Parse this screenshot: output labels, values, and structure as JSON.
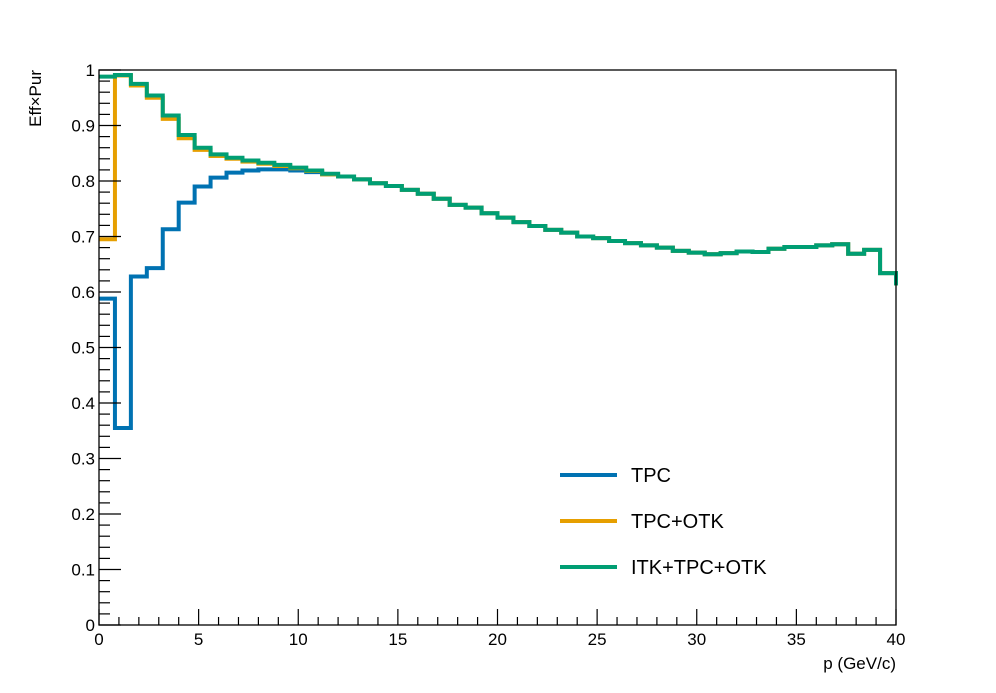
{
  "chart_data": {
    "type": "line",
    "step": true,
    "xlabel": "p (GeV/c)",
    "ylabel": "Eff×Pur",
    "xlim": [
      0,
      40
    ],
    "ylim": [
      0,
      1
    ],
    "x_ticks": [
      0,
      5,
      10,
      15,
      20,
      25,
      30,
      35,
      40
    ],
    "y_ticks": [
      0,
      0.1,
      0.2,
      0.3,
      0.4,
      0.5,
      0.6,
      0.7,
      0.8,
      0.9,
      1
    ],
    "x_tick_labels": [
      "0",
      "5",
      "10",
      "15",
      "20",
      "25",
      "30",
      "35",
      "40"
    ],
    "y_tick_labels": [
      "0",
      "0.1",
      "0.2",
      "0.3",
      "0.4",
      "0.5",
      "0.6",
      "0.7",
      "0.8",
      "0.9",
      "1"
    ],
    "grid": false,
    "legend_position": "bottom-right",
    "bin_edges": [
      0,
      0.8,
      1.6,
      2.4,
      3.2,
      4,
      4.8,
      5.6,
      6.4,
      7.2,
      8,
      8.8,
      9.6,
      10.4,
      11.2,
      12,
      12.8,
      13.6,
      14.4,
      15.2,
      16,
      16.8,
      17.6,
      18.4,
      19.2,
      20,
      20.8,
      21.6,
      22.4,
      23.2,
      24,
      24.8,
      25.6,
      26.4,
      27.2,
      28,
      28.8,
      29.6,
      30.4,
      31.2,
      32,
      32.8,
      33.6,
      34.4,
      35.2,
      36,
      36.8,
      37.6,
      38.4,
      39.2,
      40
    ],
    "series": [
      {
        "name": "TPC",
        "color": "#0072b2",
        "values": [
          0.588,
          0.355,
          0.628,
          0.643,
          0.713,
          0.761,
          0.79,
          0.806,
          0.815,
          0.819,
          0.821,
          0.821,
          0.819,
          0.816,
          0.812,
          0.808,
          0.803,
          0.796,
          0.791,
          0.784,
          0.777,
          0.768,
          0.757,
          0.752,
          0.742,
          0.734,
          0.726,
          0.719,
          0.712,
          0.707,
          0.7,
          0.697,
          0.692,
          0.688,
          0.684,
          0.68,
          0.674,
          0.671,
          0.668,
          0.67,
          0.673,
          0.672,
          0.678,
          0.681,
          0.681,
          0.684,
          0.686,
          0.669,
          0.676,
          0.634,
          0.612
        ]
      },
      {
        "name": "TPC+OTK",
        "color": "#e69f00",
        "values": [
          0.695,
          0.99,
          0.972,
          0.95,
          0.912,
          0.877,
          0.856,
          0.845,
          0.84,
          0.835,
          0.831,
          0.827,
          0.823,
          0.818,
          0.812,
          0.808,
          0.803,
          0.796,
          0.791,
          0.784,
          0.777,
          0.768,
          0.757,
          0.752,
          0.742,
          0.734,
          0.726,
          0.719,
          0.712,
          0.707,
          0.7,
          0.697,
          0.692,
          0.688,
          0.684,
          0.68,
          0.674,
          0.671,
          0.668,
          0.67,
          0.673,
          0.672,
          0.678,
          0.681,
          0.681,
          0.684,
          0.686,
          0.669,
          0.676,
          0.634,
          0.612
        ]
      },
      {
        "name": "ITK+TPC+OTK",
        "color": "#009e73",
        "values": [
          0.988,
          0.991,
          0.975,
          0.954,
          0.918,
          0.883,
          0.86,
          0.848,
          0.842,
          0.837,
          0.833,
          0.829,
          0.824,
          0.819,
          0.813,
          0.808,
          0.803,
          0.796,
          0.791,
          0.784,
          0.777,
          0.768,
          0.757,
          0.752,
          0.742,
          0.734,
          0.726,
          0.719,
          0.712,
          0.707,
          0.7,
          0.697,
          0.692,
          0.688,
          0.684,
          0.68,
          0.674,
          0.671,
          0.668,
          0.67,
          0.673,
          0.672,
          0.678,
          0.681,
          0.681,
          0.684,
          0.686,
          0.669,
          0.676,
          0.634,
          0.612
        ]
      }
    ]
  }
}
